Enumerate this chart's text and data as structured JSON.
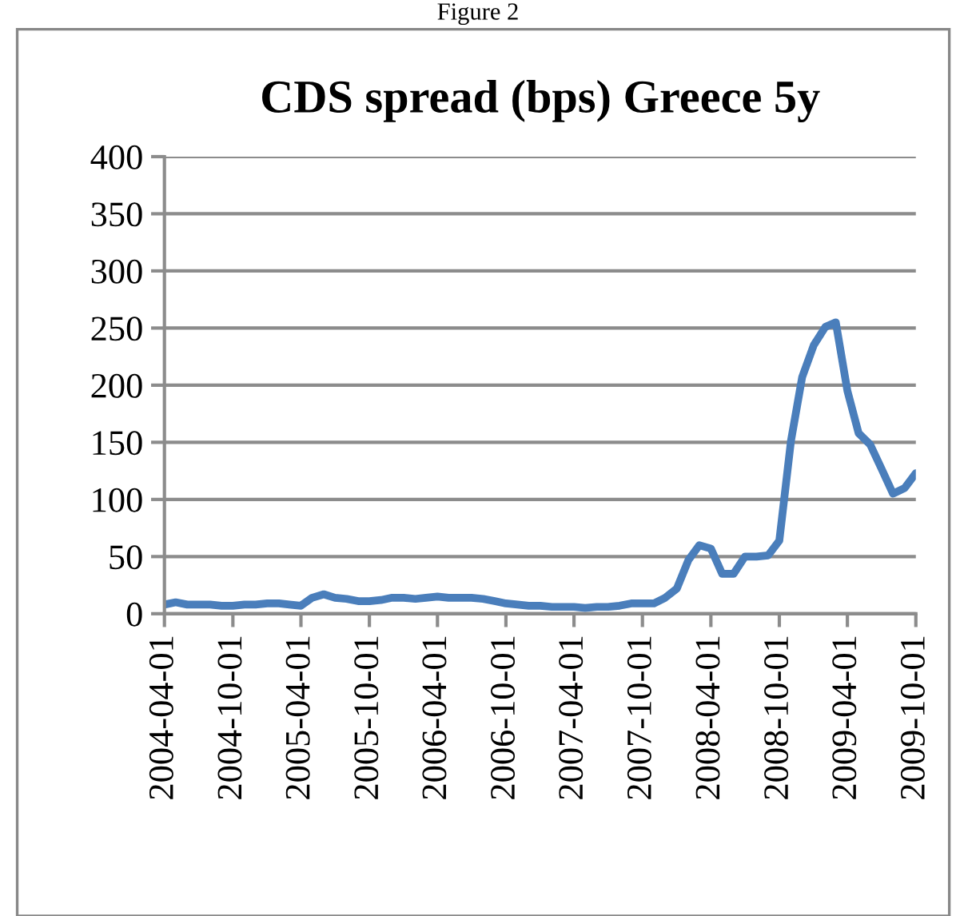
{
  "chart_data": {
    "type": "line",
    "title": "CDS spread (bps) Greece 5y",
    "annotations": [
      "Figure 2"
    ],
    "x": [
      "2004-04-01",
      "2004-05-01",
      "2004-06-01",
      "2004-07-01",
      "2004-08-01",
      "2004-09-01",
      "2004-10-01",
      "2004-11-01",
      "2004-12-01",
      "2005-01-01",
      "2005-02-01",
      "2005-03-01",
      "2005-04-01",
      "2005-05-01",
      "2005-06-01",
      "2005-07-01",
      "2005-08-01",
      "2005-09-01",
      "2005-10-01",
      "2005-11-01",
      "2005-12-01",
      "2006-01-01",
      "2006-02-01",
      "2006-03-01",
      "2006-04-01",
      "2006-05-01",
      "2006-06-01",
      "2006-07-01",
      "2006-08-01",
      "2006-09-01",
      "2006-10-01",
      "2006-11-01",
      "2006-12-01",
      "2007-01-01",
      "2007-02-01",
      "2007-03-01",
      "2007-04-01",
      "2007-05-01",
      "2007-06-01",
      "2007-07-01",
      "2007-08-01",
      "2007-09-01",
      "2007-10-01",
      "2007-11-01",
      "2007-12-01",
      "2008-01-01",
      "2008-02-01",
      "2008-03-01",
      "2008-04-01",
      "2008-05-01",
      "2008-06-01",
      "2008-07-01",
      "2008-08-01",
      "2008-09-01",
      "2008-10-01",
      "2008-11-01",
      "2008-12-01",
      "2009-01-01",
      "2009-02-01",
      "2009-03-01",
      "2009-04-01",
      "2009-05-01",
      "2009-06-01",
      "2009-07-01",
      "2009-08-01",
      "2009-09-01",
      "2009-10-01"
    ],
    "series": [
      {
        "color": "#4a7ebb",
        "values": [
          8,
          10,
          8,
          8,
          8,
          7,
          7,
          8,
          8,
          9,
          9,
          8,
          7,
          14,
          17,
          14,
          13,
          11,
          11,
          12,
          14,
          14,
          13,
          14,
          15,
          14,
          14,
          14,
          13,
          11,
          9,
          8,
          7,
          7,
          6,
          6,
          6,
          5,
          6,
          6,
          7,
          9,
          9,
          9,
          14,
          22,
          47,
          60,
          57,
          35,
          35,
          50,
          50,
          51,
          64,
          151,
          207,
          235,
          251,
          255,
          195,
          158,
          148,
          127,
          105,
          110,
          123
        ]
      }
    ],
    "xlim": [
      "2004-04-01",
      "2009-10-01"
    ],
    "xticks": [
      "2004-04-01",
      "2004-10-01",
      "2005-04-01",
      "2005-10-01",
      "2006-04-01",
      "2006-10-01",
      "2007-04-01",
      "2007-10-01",
      "2008-04-01",
      "2008-10-01",
      "2009-04-01",
      "2009-10-01"
    ],
    "ylim": [
      0,
      400
    ],
    "yticks": [
      0,
      50,
      100,
      150,
      200,
      250,
      300,
      350,
      400
    ],
    "grid": "y",
    "legend": false,
    "marker": "none",
    "line_style": "solid"
  }
}
